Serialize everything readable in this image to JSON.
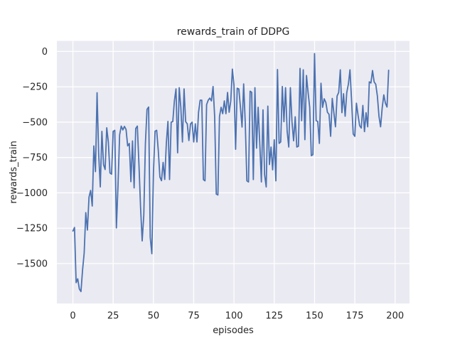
{
  "chart_data": {
    "type": "line",
    "title": "rewards_train of DDPG",
    "xlabel": "episodes",
    "ylabel": "rewards_train",
    "x_ticks": [
      0,
      25,
      50,
      75,
      100,
      125,
      150,
      175,
      200
    ],
    "x_tick_labels": [
      "0",
      "25",
      "50",
      "75",
      "100",
      "125",
      "150",
      "175",
      "200"
    ],
    "y_ticks": [
      0,
      -250,
      -500,
      -750,
      -1000,
      -1250,
      -1500
    ],
    "y_tick_labels": [
      "0",
      "−250",
      "−500",
      "−750",
      "−1000",
      "−1250",
      "−1500"
    ],
    "xlim": [
      -9.95,
      208.95
    ],
    "ylim": [
      -1782.4,
      74.4
    ],
    "grid": true,
    "legend": "none",
    "style": {
      "figure_background": "#ffffff",
      "axes_background": "#eaeaf2",
      "grid_color": "#ffffff",
      "line_color": "#4c72b0",
      "text_color": "#262626"
    },
    "series": [
      {
        "name": "rewards_train",
        "x_start": 0,
        "x_step": 1,
        "values": [
          -1270,
          -1245,
          -1635,
          -1608,
          -1680,
          -1698,
          -1545,
          -1425,
          -1140,
          -1263,
          -1030,
          -983,
          -1093,
          -668,
          -850,
          -292,
          -725,
          -958,
          -565,
          -800,
          -835,
          -540,
          -641,
          -859,
          -868,
          -565,
          -558,
          -1248,
          -948,
          -590,
          -528,
          -555,
          -530,
          -552,
          -668,
          -651,
          -921,
          -633,
          -965,
          -545,
          -528,
          -799,
          -1100,
          -1340,
          -1160,
          -652,
          -410,
          -393,
          -1315,
          -1430,
          -855,
          -564,
          -558,
          -700,
          -888,
          -914,
          -785,
          -905,
          -649,
          -495,
          -906,
          -500,
          -496,
          -350,
          -265,
          -717,
          -256,
          -395,
          -640,
          -265,
          -497,
          -512,
          -630,
          -513,
          -500,
          -640,
          -512,
          -640,
          -430,
          -345,
          -345,
          -906,
          -915,
          -376,
          -345,
          -330,
          -350,
          -248,
          -460,
          -1009,
          -1015,
          -460,
          -395,
          -440,
          -350,
          -440,
          -290,
          -430,
          -350,
          -125,
          -240,
          -692,
          -260,
          -265,
          -395,
          -535,
          -230,
          -507,
          -915,
          -923,
          -281,
          -289,
          -906,
          -256,
          -684,
          -395,
          -650,
          -923,
          -413,
          -872,
          -958,
          -387,
          -800,
          -676,
          -837,
          -625,
          -915,
          -128,
          -650,
          -640,
          -248,
          -497,
          -256,
          -565,
          -676,
          -256,
          -497,
          -632,
          -462,
          -676,
          -670,
          -120,
          -490,
          -130,
          -624,
          -170,
          -290,
          -395,
          -737,
          -730,
          -15,
          -490,
          -495,
          -650,
          -225,
          -395,
          -335,
          -360,
          -430,
          -445,
          -600,
          -332,
          -433,
          -533,
          -315,
          -290,
          -130,
          -433,
          -299,
          -458,
          -291,
          -232,
          -130,
          -349,
          -584,
          -600,
          -366,
          -450,
          -525,
          -542,
          -382,
          -567,
          -433,
          -533,
          -215,
          -223,
          -135,
          -215,
          -232,
          -315,
          -458,
          -533,
          -399,
          -307,
          -366,
          -393,
          -133
        ]
      }
    ]
  }
}
